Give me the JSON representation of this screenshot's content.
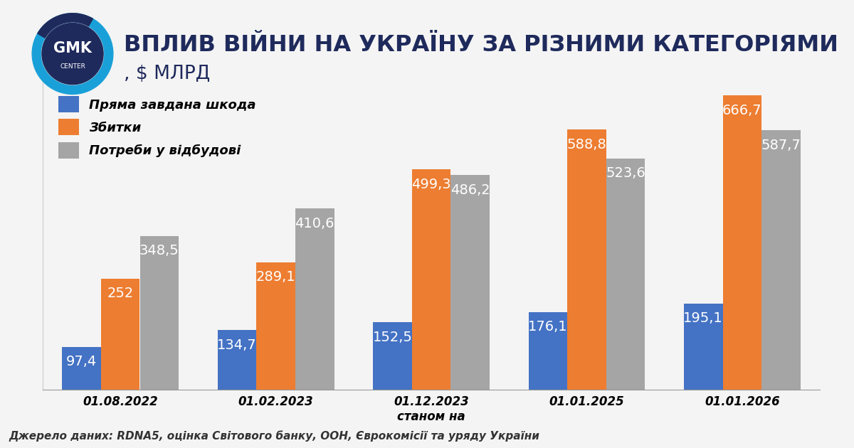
{
  "chart_data": {
    "type": "bar",
    "title": "ВПЛИВ ВІЙНИ НА УКРАЇНУ ЗА РІЗНИМИ КАТЕГОРІЯМИ",
    "subtitle": ", $ МЛРД",
    "x_label": "станом на",
    "source": "Джерело даних: RDNA5, оцінка Світового банку, ООН, Єврокомісії та уряду України",
    "logo": [
      "GMK",
      "CENTER"
    ],
    "categories": [
      "01.08.2022",
      "01.02.2023",
      "01.12.2023",
      "01.01.2025",
      "01.01.2026"
    ],
    "series": [
      {
        "name": "Пряма завдана шкода",
        "color": "#4472c4",
        "values": [
          97.4,
          134.7,
          152.5,
          176.1,
          195.1
        ],
        "value_labels": [
          "97,4",
          "134,7",
          "152,5",
          "176,1",
          "195,1"
        ]
      },
      {
        "name": "Збитки",
        "color": "#ed7d31",
        "values": [
          252,
          289.1,
          499.3,
          588.8,
          666.7
        ],
        "value_labels": [
          "252",
          "289,1",
          "499,3",
          "588,8",
          "666,7"
        ]
      },
      {
        "name": "Потреби у відбудові",
        "color": "#a5a5a5",
        "values": [
          348.5,
          410.6,
          486.2,
          523.6,
          587.7
        ],
        "value_labels": [
          "348,5",
          "410,6",
          "486,2",
          "523,6",
          "587,7"
        ]
      }
    ],
    "ylim": [
      0,
      700
    ],
    "yticks": [],
    "grid": false,
    "legend": "upper left",
    "data_labels": true,
    "tick_labels": "x"
  }
}
